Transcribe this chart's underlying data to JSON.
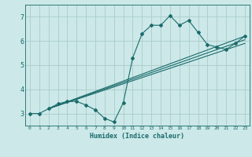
{
  "xlabel": "Humidex (Indice chaleur)",
  "bg_color": "#cce8e8",
  "grid_color": "#aacccc",
  "line_color": "#1a6b6b",
  "xlim": [
    -0.5,
    23.5
  ],
  "ylim": [
    2.5,
    7.5
  ],
  "yticks": [
    3,
    4,
    5,
    6,
    7
  ],
  "xticks": [
    0,
    1,
    2,
    3,
    4,
    5,
    6,
    7,
    8,
    9,
    10,
    11,
    12,
    13,
    14,
    15,
    16,
    17,
    18,
    19,
    20,
    21,
    22,
    23
  ],
  "line1_x": [
    0,
    1,
    2,
    3,
    4,
    5,
    6,
    7,
    8,
    9,
    10,
    11,
    12,
    13,
    14,
    15,
    16,
    17,
    18,
    19,
    20,
    21,
    22,
    23
  ],
  "line1_y": [
    3.0,
    3.0,
    3.2,
    3.4,
    3.5,
    3.5,
    3.35,
    3.15,
    2.8,
    2.65,
    3.45,
    5.3,
    6.3,
    6.65,
    6.65,
    7.05,
    6.65,
    6.85,
    6.35,
    5.85,
    5.75,
    5.65,
    5.9,
    6.2
  ],
  "line2_x": [
    2,
    23
  ],
  "line2_y": [
    3.2,
    6.2
  ],
  "line3_x": [
    2,
    23
  ],
  "line3_y": [
    3.2,
    6.05
  ],
  "line4_x": [
    2,
    23
  ],
  "line4_y": [
    3.2,
    5.9
  ]
}
